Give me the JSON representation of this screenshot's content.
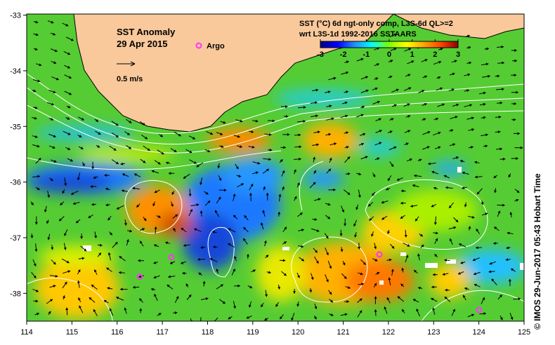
{
  "map": {
    "title": "SST Anomaly",
    "date": "29 Apr 2015",
    "argo_label": "Argo",
    "scale_label": "0.5 m/s",
    "product_line1": "SST (°C) 6d ngt-only comp, L3S-6d QL>=2",
    "product_line2": "wrt L3S-1d 1992-2016 SSTAARS",
    "credit": "© IMOS 29-Jun-2017 05:43 Hobart Time",
    "colors": {
      "land": "#f9c99b",
      "cloud": "#ffffff",
      "argo": "#ff33ff",
      "current_arrow": "#000000",
      "streamline": "#ffffff"
    },
    "colorbar": {
      "ticks": [
        "-3",
        "-2",
        "-1",
        "0",
        "1",
        "2",
        "3"
      ],
      "colors": [
        "#00008b",
        "#0000ff",
        "#1e90ff",
        "#00ffff",
        "#7fff00",
        "#ffff00",
        "#ffa500",
        "#ff4500",
        "#8b0000"
      ]
    },
    "x_ticks": [
      "114",
      "115",
      "116",
      "117",
      "118",
      "119",
      "120",
      "121",
      "122",
      "123",
      "124",
      "125"
    ],
    "y_ticks": [
      "-33",
      "-34",
      "-35",
      "-36",
      "-37",
      "-38"
    ],
    "argo_floats": [
      {
        "lon": 116.5,
        "lat": -37.7
      },
      {
        "lon": 117.2,
        "lat": -37.35
      },
      {
        "lon": 121.8,
        "lat": -37.3
      },
      {
        "lon": 124.0,
        "lat": -38.3
      }
    ]
  }
}
